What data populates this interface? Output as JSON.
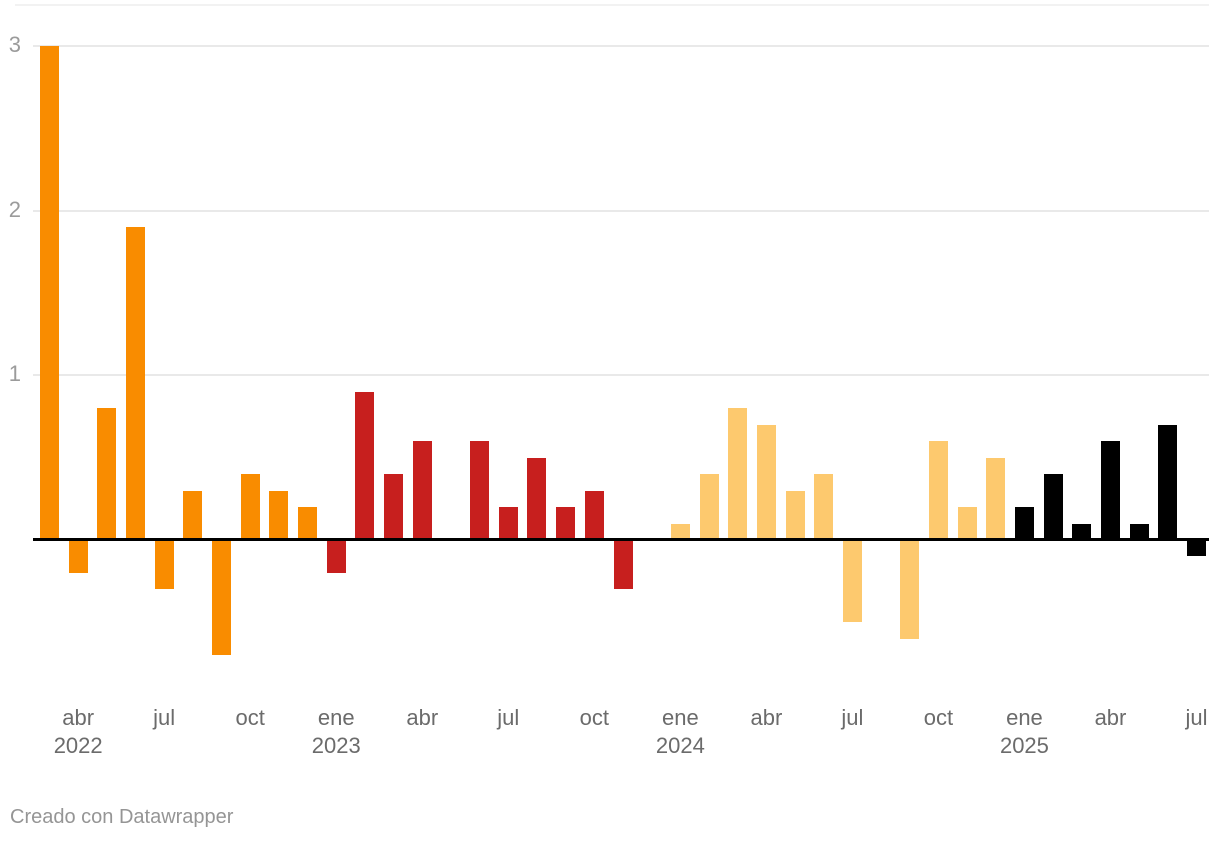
{
  "footer": {
    "credit": "Creado con Datawrapper"
  },
  "chart_data": {
    "type": "bar",
    "title": "",
    "xlabel": "",
    "ylabel": "",
    "yticks": [
      1,
      2,
      3
    ],
    "ylim": [
      -0.75,
      3.25
    ],
    "grid": "horizontal",
    "legend": "none",
    "xtick_months": [
      "ene",
      "abr",
      "jul",
      "oct"
    ],
    "colors_by_year": {
      "2022": "#F98C00",
      "2023": "#C71F1E",
      "2024": "#FDC96E",
      "2025": "#000000"
    },
    "axis_colors": {
      "gridline": "#e9e9e9",
      "plot_top_border": "#f2f2f2",
      "zero_baseline": "#000000",
      "y_tick_label": "#9b9b9b",
      "x_tick_label": "#6b6b6b"
    },
    "months": [
      {
        "m": "mar",
        "y": "2022",
        "v": 3.0
      },
      {
        "m": "abr",
        "y": "2022",
        "v": -0.2
      },
      {
        "m": "may",
        "y": "2022",
        "v": 0.8
      },
      {
        "m": "jun",
        "y": "2022",
        "v": 1.9
      },
      {
        "m": "jul",
        "y": "2022",
        "v": -0.3
      },
      {
        "m": "ago",
        "y": "2022",
        "v": 0.3
      },
      {
        "m": "sep",
        "y": "2022",
        "v": -0.7
      },
      {
        "m": "oct",
        "y": "2022",
        "v": 0.4
      },
      {
        "m": "nov",
        "y": "2022",
        "v": 0.3
      },
      {
        "m": "dic",
        "y": "2022",
        "v": 0.2
      },
      {
        "m": "ene",
        "y": "2023",
        "v": -0.2
      },
      {
        "m": "feb",
        "y": "2023",
        "v": 0.9
      },
      {
        "m": "mar",
        "y": "2023",
        "v": 0.4
      },
      {
        "m": "abr",
        "y": "2023",
        "v": 0.6
      },
      {
        "m": "may",
        "y": "2023",
        "v": 0.0
      },
      {
        "m": "jun",
        "y": "2023",
        "v": 0.6
      },
      {
        "m": "jul",
        "y": "2023",
        "v": 0.2
      },
      {
        "m": "ago",
        "y": "2023",
        "v": 0.5
      },
      {
        "m": "sep",
        "y": "2023",
        "v": 0.2
      },
      {
        "m": "oct",
        "y": "2023",
        "v": 0.3
      },
      {
        "m": "nov",
        "y": "2023",
        "v": -0.3
      },
      {
        "m": "dic",
        "y": "2023",
        "v": 0.0
      },
      {
        "m": "ene",
        "y": "2024",
        "v": 0.1
      },
      {
        "m": "feb",
        "y": "2024",
        "v": 0.4
      },
      {
        "m": "mar",
        "y": "2024",
        "v": 0.8
      },
      {
        "m": "abr",
        "y": "2024",
        "v": 0.7
      },
      {
        "m": "may",
        "y": "2024",
        "v": 0.3
      },
      {
        "m": "jun",
        "y": "2024",
        "v": 0.4
      },
      {
        "m": "jul",
        "y": "2024",
        "v": -0.5
      },
      {
        "m": "ago",
        "y": "2024",
        "v": 0.0
      },
      {
        "m": "sep",
        "y": "2024",
        "v": -0.6
      },
      {
        "m": "oct",
        "y": "2024",
        "v": 0.6
      },
      {
        "m": "nov",
        "y": "2024",
        "v": 0.2
      },
      {
        "m": "dic",
        "y": "2024",
        "v": 0.5
      },
      {
        "m": "ene",
        "y": "2025",
        "v": 0.2
      },
      {
        "m": "feb",
        "y": "2025",
        "v": 0.4
      },
      {
        "m": "mar",
        "y": "2025",
        "v": 0.1
      },
      {
        "m": "abr",
        "y": "2025",
        "v": 0.6
      },
      {
        "m": "may",
        "y": "2025",
        "v": 0.1
      },
      {
        "m": "jun",
        "y": "2025",
        "v": 0.7
      },
      {
        "m": "jul",
        "y": "2025",
        "v": -0.1
      }
    ]
  }
}
